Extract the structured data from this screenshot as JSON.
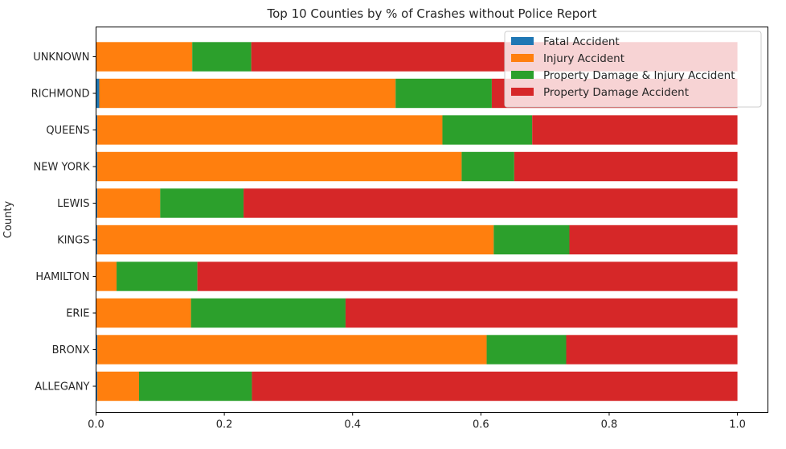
{
  "chart_data": {
    "type": "bar",
    "orientation": "horizontal",
    "stacked": true,
    "title": "Top 10 Counties by % of Crashes without Police Report",
    "xlabel": "",
    "ylabel": "County",
    "xlim": [
      0,
      1.0
    ],
    "xticks": [
      "0.0",
      "0.2",
      "0.4",
      "0.6",
      "0.8",
      "1.0"
    ],
    "grid": false,
    "legend_position": "top-right",
    "categories": [
      "UNKNOWN",
      "RICHMOND",
      "QUEENS",
      "NEW YORK",
      "LEWIS",
      "KINGS",
      "HAMILTON",
      "ERIE",
      "BRONX",
      "ALLEGANY"
    ],
    "series": [
      {
        "name": "Fatal Accident",
        "color": "#1f77b4",
        "values": [
          0.0,
          0.005,
          0.002,
          0.002,
          0.002,
          0.002,
          0.0,
          0.0,
          0.002,
          0.002
        ]
      },
      {
        "name": "Injury Accident",
        "color": "#ff7f0e",
        "values": [
          0.15,
          0.462,
          0.538,
          0.568,
          0.098,
          0.618,
          0.032,
          0.148,
          0.607,
          0.065
        ]
      },
      {
        "name": "Property Damage & Injury Accident",
        "color": "#2ca02c",
        "values": [
          0.092,
          0.15,
          0.14,
          0.082,
          0.13,
          0.118,
          0.126,
          0.241,
          0.124,
          0.176
        ]
      },
      {
        "name": "Property Damage Accident",
        "color": "#d62728",
        "values": [
          0.758,
          0.383,
          0.32,
          0.348,
          0.77,
          0.262,
          0.842,
          0.611,
          0.267,
          0.757
        ]
      }
    ]
  }
}
